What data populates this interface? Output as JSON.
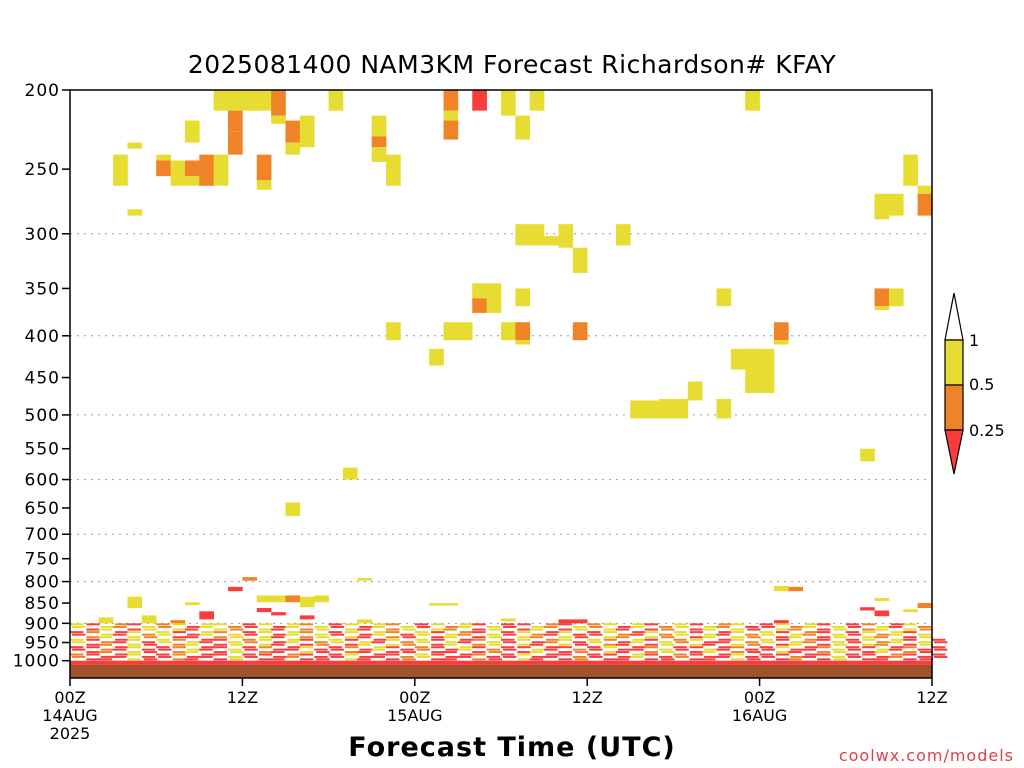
{
  "header": {
    "title": "2025081400 NAM3KM Forecast Richardson# KFAY"
  },
  "footer": {
    "xlabel": "Forecast Time (UTC)",
    "credit": "coolwx.com/models"
  },
  "colors": {
    "yellow": "#e6dc32",
    "orange": "#f08228",
    "red": "#fa3c3c",
    "ground": "#a0522d",
    "frame": "#000000",
    "grid": "#999999"
  },
  "chart_data": {
    "type": "heatmap",
    "title": "2025081400 NAM3KM Forecast Richardson# KFAY",
    "xlabel": "Forecast Time (UTC)",
    "ylabel": "",
    "x_unit": "forecast hour from 2025-08-14 00Z",
    "xlim": [
      0,
      60
    ],
    "y_scale": "log pressure (hPa), inverted",
    "ylim": [
      1050,
      200
    ],
    "yticks": [
      200,
      250,
      300,
      350,
      400,
      450,
      500,
      550,
      600,
      650,
      700,
      750,
      800,
      850,
      900,
      950,
      1000
    ],
    "gridlines_y": [
      300,
      400,
      500,
      600,
      700,
      800,
      900
    ],
    "xticks": [
      {
        "hour": 0,
        "label": "00Z",
        "day": "14AUG",
        "year": "2025"
      },
      {
        "hour": 12,
        "label": "12Z",
        "day": "",
        "year": ""
      },
      {
        "hour": 24,
        "label": "00Z",
        "day": "15AUG",
        "year": ""
      },
      {
        "hour": 36,
        "label": "12Z",
        "day": "",
        "year": ""
      },
      {
        "hour": 48,
        "label": "00Z",
        "day": "16AUG",
        "year": ""
      },
      {
        "hour": 60,
        "label": "12Z",
        "day": "",
        "year": ""
      }
    ],
    "legend": {
      "placement": "right",
      "labels": [
        "1",
        "0.5",
        "0.25"
      ],
      "bins": [
        {
          "name": "<0.25",
          "color": "#fa3c3c"
        },
        {
          "name": "0.25-0.5",
          "color": "#f08228"
        },
        {
          "name": "0.5-1",
          "color": "#e6dc32"
        }
      ]
    },
    "cells": [
      {
        "t": 10,
        "p1": 200,
        "p2": 212,
        "c": "Y"
      },
      {
        "t": 11,
        "p1": 200,
        "p2": 212,
        "c": "Y"
      },
      {
        "t": 12,
        "p1": 200,
        "p2": 212,
        "c": "Y"
      },
      {
        "t": 13,
        "p1": 200,
        "p2": 212,
        "c": "Y"
      },
      {
        "t": 14,
        "p1": 200,
        "p2": 215,
        "c": "O"
      },
      {
        "t": 18,
        "p1": 200,
        "p2": 212,
        "c": "Y"
      },
      {
        "t": 26,
        "p1": 200,
        "p2": 212,
        "c": "O"
      },
      {
        "t": 28,
        "p1": 200,
        "p2": 212,
        "c": "R"
      },
      {
        "t": 30,
        "p1": 200,
        "p2": 215,
        "c": "Y"
      },
      {
        "t": 32,
        "p1": 200,
        "p2": 212,
        "c": "Y"
      },
      {
        "t": 47,
        "p1": 200,
        "p2": 212,
        "c": "Y"
      },
      {
        "t": 11,
        "p1": 212,
        "p2": 225,
        "c": "O"
      },
      {
        "t": 14,
        "p1": 215,
        "p2": 220,
        "c": "Y"
      },
      {
        "t": 15,
        "p1": 218,
        "p2": 232,
        "c": "O"
      },
      {
        "t": 16,
        "p1": 215,
        "p2": 235,
        "c": "Y"
      },
      {
        "t": 21,
        "p1": 215,
        "p2": 228,
        "c": "Y"
      },
      {
        "t": 26,
        "p1": 212,
        "p2": 218,
        "c": "Y"
      },
      {
        "t": 31,
        "p1": 215,
        "p2": 230,
        "c": "Y"
      },
      {
        "t": 8,
        "p1": 218,
        "p2": 232,
        "c": "Y"
      },
      {
        "t": 11,
        "p1": 225,
        "p2": 240,
        "c": "O"
      },
      {
        "t": 15,
        "p1": 232,
        "p2": 240,
        "c": "Y"
      },
      {
        "t": 21,
        "p1": 228,
        "p2": 235,
        "c": "O"
      },
      {
        "t": 26,
        "p1": 218,
        "p2": 230,
        "c": "O"
      },
      {
        "t": 4,
        "p1": 232,
        "p2": 236,
        "c": "Y"
      },
      {
        "t": 21,
        "p1": 235,
        "p2": 245,
        "c": "Y"
      },
      {
        "t": 3,
        "p1": 240,
        "p2": 262,
        "c": "Y"
      },
      {
        "t": 6,
        "p1": 240,
        "p2": 244,
        "c": "Y"
      },
      {
        "t": 6,
        "p1": 244,
        "p2": 255,
        "c": "O"
      },
      {
        "t": 7,
        "p1": 244,
        "p2": 262,
        "c": "Y"
      },
      {
        "t": 8,
        "p1": 244,
        "p2": 255,
        "c": "O"
      },
      {
        "t": 8,
        "p1": 255,
        "p2": 262,
        "c": "Y"
      },
      {
        "t": 9,
        "p1": 240,
        "p2": 262,
        "c": "O"
      },
      {
        "t": 10,
        "p1": 240,
        "p2": 262,
        "c": "Y"
      },
      {
        "t": 13,
        "p1": 240,
        "p2": 258,
        "c": "O"
      },
      {
        "t": 13,
        "p1": 258,
        "p2": 265,
        "c": "Y"
      },
      {
        "t": 22,
        "p1": 240,
        "p2": 262,
        "c": "Y"
      },
      {
        "t": 58,
        "p1": 240,
        "p2": 262,
        "c": "Y"
      },
      {
        "t": 4,
        "p1": 280,
        "p2": 285,
        "c": "Y"
      },
      {
        "t": 56,
        "p1": 268,
        "p2": 288,
        "c": "Y"
      },
      {
        "t": 57,
        "p1": 268,
        "p2": 285,
        "c": "Y"
      },
      {
        "t": 59,
        "p1": 262,
        "p2": 268,
        "c": "Y"
      },
      {
        "t": 59,
        "p1": 268,
        "p2": 285,
        "c": "O"
      },
      {
        "t": 31,
        "p1": 292,
        "p2": 310,
        "c": "Y"
      },
      {
        "t": 32,
        "p1": 292,
        "p2": 310,
        "c": "Y"
      },
      {
        "t": 33,
        "p1": 302,
        "p2": 310,
        "c": "Y"
      },
      {
        "t": 34,
        "p1": 292,
        "p2": 312,
        "c": "Y"
      },
      {
        "t": 35,
        "p1": 312,
        "p2": 335,
        "c": "Y"
      },
      {
        "t": 38,
        "p1": 292,
        "p2": 310,
        "c": "Y"
      },
      {
        "t": 28,
        "p1": 345,
        "p2": 360,
        "c": "Y"
      },
      {
        "t": 28,
        "p1": 360,
        "p2": 375,
        "c": "O"
      },
      {
        "t": 29,
        "p1": 345,
        "p2": 375,
        "c": "Y"
      },
      {
        "t": 31,
        "p1": 350,
        "p2": 368,
        "c": "Y"
      },
      {
        "t": 45,
        "p1": 350,
        "p2": 368,
        "c": "Y"
      },
      {
        "t": 56,
        "p1": 350,
        "p2": 368,
        "c": "O"
      },
      {
        "t": 56,
        "p1": 368,
        "p2": 372,
        "c": "Y"
      },
      {
        "t": 57,
        "p1": 350,
        "p2": 368,
        "c": "Y"
      },
      {
        "t": 22,
        "p1": 385,
        "p2": 405,
        "c": "Y"
      },
      {
        "t": 26,
        "p1": 385,
        "p2": 405,
        "c": "Y"
      },
      {
        "t": 27,
        "p1": 385,
        "p2": 405,
        "c": "Y"
      },
      {
        "t": 30,
        "p1": 385,
        "p2": 405,
        "c": "Y"
      },
      {
        "t": 31,
        "p1": 385,
        "p2": 405,
        "c": "O"
      },
      {
        "t": 31,
        "p1": 405,
        "p2": 410,
        "c": "Y"
      },
      {
        "t": 35,
        "p1": 385,
        "p2": 405,
        "c": "O"
      },
      {
        "t": 49,
        "p1": 385,
        "p2": 405,
        "c": "O"
      },
      {
        "t": 49,
        "p1": 405,
        "p2": 410,
        "c": "Y"
      },
      {
        "t": 25,
        "p1": 415,
        "p2": 435,
        "c": "Y"
      },
      {
        "t": 46,
        "p1": 415,
        "p2": 440,
        "c": "Y"
      },
      {
        "t": 47,
        "p1": 415,
        "p2": 470,
        "c": "Y"
      },
      {
        "t": 48,
        "p1": 415,
        "p2": 470,
        "c": "Y"
      },
      {
        "t": 43,
        "p1": 455,
        "p2": 480,
        "c": "Y"
      },
      {
        "t": 39,
        "p1": 480,
        "p2": 505,
        "c": "Y"
      },
      {
        "t": 40,
        "p1": 480,
        "p2": 505,
        "c": "Y"
      },
      {
        "t": 41,
        "p1": 478,
        "p2": 505,
        "c": "Y"
      },
      {
        "t": 42,
        "p1": 478,
        "p2": 505,
        "c": "Y"
      },
      {
        "t": 45,
        "p1": 478,
        "p2": 505,
        "c": "Y"
      },
      {
        "t": 55,
        "p1": 550,
        "p2": 570,
        "c": "Y"
      },
      {
        "t": 19,
        "p1": 580,
        "p2": 600,
        "c": "Y"
      },
      {
        "t": 15,
        "p1": 640,
        "p2": 665,
        "c": "Y"
      },
      {
        "t": 12,
        "p1": 790,
        "p2": 798,
        "c": "O"
      },
      {
        "t": 20,
        "p1": 792,
        "p2": 798,
        "c": "Y"
      },
      {
        "t": 50,
        "p1": 812,
        "p2": 822,
        "c": "O"
      },
      {
        "t": 49,
        "p1": 810,
        "p2": 822,
        "c": "Y"
      },
      {
        "t": 11,
        "p1": 812,
        "p2": 822,
        "c": "R"
      },
      {
        "t": 13,
        "p1": 832,
        "p2": 848,
        "c": "Y"
      },
      {
        "t": 14,
        "p1": 832,
        "p2": 848,
        "c": "Y"
      },
      {
        "t": 15,
        "p1": 832,
        "p2": 848,
        "c": "O"
      },
      {
        "t": 16,
        "p1": 835,
        "p2": 860,
        "c": "Y"
      },
      {
        "t": 17,
        "p1": 832,
        "p2": 848,
        "c": "Y"
      },
      {
        "t": 4,
        "p1": 835,
        "p2": 862,
        "c": "Y"
      },
      {
        "t": 8,
        "p1": 848,
        "p2": 855,
        "c": "Y"
      },
      {
        "t": 25,
        "p1": 850,
        "p2": 856,
        "c": "Y"
      },
      {
        "t": 26,
        "p1": 850,
        "p2": 856,
        "c": "Y"
      },
      {
        "t": 59,
        "p1": 850,
        "p2": 862,
        "c": "O"
      },
      {
        "t": 56,
        "p1": 838,
        "p2": 845,
        "c": "Y"
      },
      {
        "t": 9,
        "p1": 870,
        "p2": 890,
        "c": "R"
      },
      {
        "t": 13,
        "p1": 862,
        "p2": 872,
        "c": "R"
      },
      {
        "t": 14,
        "p1": 872,
        "p2": 880,
        "c": "R"
      },
      {
        "t": 16,
        "p1": 880,
        "p2": 890,
        "c": "R"
      },
      {
        "t": 30,
        "p1": 888,
        "p2": 895,
        "c": "Y"
      },
      {
        "t": 55,
        "p1": 860,
        "p2": 868,
        "c": "R"
      },
      {
        "t": 56,
        "p1": 868,
        "p2": 882,
        "c": "R"
      },
      {
        "t": 58,
        "p1": 865,
        "p2": 872,
        "c": "Y"
      },
      {
        "t": 2,
        "p1": 885,
        "p2": 900,
        "c": "Y"
      },
      {
        "t": 5,
        "p1": 880,
        "p2": 900,
        "c": "Y"
      },
      {
        "t": 7,
        "p1": 892,
        "p2": 900,
        "c": "O"
      },
      {
        "t": 20,
        "p1": 890,
        "p2": 900,
        "c": "Y"
      },
      {
        "t": 34,
        "p1": 890,
        "p2": 900,
        "c": "R"
      },
      {
        "t": 35,
        "p1": 890,
        "p2": 900,
        "c": "R"
      },
      {
        "t": 49,
        "p1": 892,
        "p2": 900,
        "c": "R"
      }
    ],
    "low_level_rows": [
      {
        "p1": 900,
        "p2": 920,
        "pattern": "YRYORYOYRYYORYRYOYRYRYOYRYOYRYRRYORYOYRYROYRYOYRRYOYRYROYRYO"
      },
      {
        "p1": 920,
        "p2": 940,
        "pattern": "ROYRYOYRRYOYRYRYOYRYRYORYRYORYRYORYRRYORYOYRYRYOYRYORYRYOYRY"
      },
      {
        "p1": 940,
        "p2": 960,
        "pattern": "YRORYRYOYRRYOYRYROYRYRYOYRYROYRYROYRYORYRYOYRRYOYRYORYRYOYRYR"
      },
      {
        "p1": 960,
        "p2": 980,
        "pattern": "RRORYRROYRRYRORRYRRORYRRORRYRORRYRRORYRROYRRYRORRYRROYRRYRORR"
      },
      {
        "p1": 980,
        "p2": 1000,
        "pattern": "ORRRYRRORRRYRRRORRRYRRROYRRRORRYRRRORRRYRRORRRYRRRORRYRRRORRR"
      },
      {
        "p1": 1000,
        "p2": 1012,
        "pattern": "RRRRRRRRRRRRRRRRRRRRRRRRRRRRRRRRRRRRRRRRRRRRRRRRRRRRRRRRRRRR"
      },
      {
        "p1": 1012,
        "p2": 1050,
        "pattern": "GGGGGGGGGGGGGGGGGGGGGGGGGGGGGGGGGGGGGGGGGGGGGGGGGGGGGGGGGGGG"
      }
    ]
  }
}
